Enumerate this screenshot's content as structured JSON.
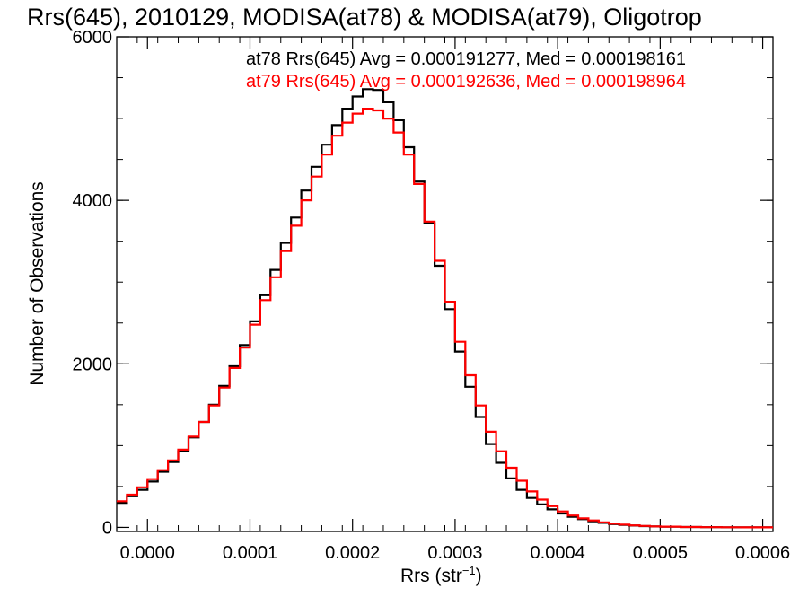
{
  "chart_data": {
    "type": "line",
    "title": "Rrs(645), 2010129, MODISA(at78) & MODISA(at79), Oligotrop",
    "xlabel_main": "Rrs (str",
    "xlabel_sup": "−1",
    "xlabel_close": ")",
    "ylabel": "Number of Observations",
    "xlim": [
      -3e-05,
      0.00061
    ],
    "ylim": [
      -50,
      6000
    ],
    "x_ticks": [
      0.0,
      0.0001,
      0.0002,
      0.0003,
      0.0004,
      0.0005,
      0.0006
    ],
    "x_tick_labels": [
      "0.0000",
      "0.0001",
      "0.0002",
      "0.0003",
      "0.0004",
      "0.0005",
      "0.0006"
    ],
    "y_ticks": [
      0,
      2000,
      4000,
      6000
    ],
    "y_tick_labels": [
      "0",
      "2000",
      "4000",
      "6000"
    ],
    "grid": false,
    "legend_position": "top-right",
    "series": [
      {
        "name": "at78",
        "legend_text": "at78 Rrs(645) Avg = 0.000191277, Med = 0.000198161",
        "color": "#000000",
        "x": [
          -3e-05,
          -2e-05,
          -1e-05,
          0.0,
          1e-05,
          2e-05,
          3e-05,
          4e-05,
          5e-05,
          6e-05,
          7e-05,
          8e-05,
          9e-05,
          0.0001,
          0.00011,
          0.00012,
          0.00013,
          0.00014,
          0.00015,
          0.00016,
          0.00017,
          0.00018,
          0.00019,
          0.0002,
          0.00021,
          0.00022,
          0.00023,
          0.00024,
          0.00025,
          0.00026,
          0.00027,
          0.00028,
          0.00029,
          0.0003,
          0.00031,
          0.00032,
          0.00033,
          0.00034,
          0.00035,
          0.00036,
          0.00037,
          0.00038,
          0.00039,
          0.0004,
          0.00041,
          0.00042,
          0.00043,
          0.00044,
          0.00045,
          0.00046,
          0.00047,
          0.00048,
          0.00049,
          0.0005,
          0.00052,
          0.00054,
          0.00056,
          0.00058,
          0.0006
        ],
        "y": [
          300,
          380,
          460,
          560,
          680,
          800,
          930,
          1100,
          1290,
          1500,
          1730,
          1970,
          2230,
          2520,
          2840,
          3150,
          3480,
          3790,
          4120,
          4410,
          4680,
          4920,
          5120,
          5270,
          5360,
          5350,
          5200,
          4980,
          4650,
          4230,
          3720,
          3200,
          2670,
          2150,
          1720,
          1350,
          1020,
          790,
          600,
          460,
          360,
          280,
          220,
          170,
          130,
          100,
          75,
          55,
          40,
          30,
          22,
          16,
          12,
          9,
          5,
          3,
          2,
          1,
          0
        ]
      },
      {
        "name": "at79",
        "legend_text": "at79 Rrs(645) Avg = 0.000192636, Med = 0.000198964",
        "color": "#ff0000",
        "x": [
          -3e-05,
          -2e-05,
          -1e-05,
          0.0,
          1e-05,
          2e-05,
          3e-05,
          4e-05,
          5e-05,
          6e-05,
          7e-05,
          8e-05,
          9e-05,
          0.0001,
          0.00011,
          0.00012,
          0.00013,
          0.00014,
          0.00015,
          0.00016,
          0.00017,
          0.00018,
          0.00019,
          0.0002,
          0.00021,
          0.00022,
          0.00023,
          0.00024,
          0.00025,
          0.00026,
          0.00027,
          0.00028,
          0.00029,
          0.0003,
          0.00031,
          0.00032,
          0.00033,
          0.00034,
          0.00035,
          0.00036,
          0.00037,
          0.00038,
          0.00039,
          0.0004,
          0.00041,
          0.00042,
          0.00043,
          0.00044,
          0.00045,
          0.00046,
          0.00047,
          0.00048,
          0.00049,
          0.0005,
          0.00052,
          0.00054,
          0.00056,
          0.00058,
          0.0006
        ],
        "y": [
          320,
          400,
          490,
          590,
          700,
          820,
          950,
          1110,
          1290,
          1490,
          1710,
          1950,
          2200,
          2480,
          2780,
          3060,
          3380,
          3690,
          4000,
          4290,
          4560,
          4790,
          4950,
          5060,
          5120,
          5100,
          5000,
          4830,
          4560,
          4200,
          3740,
          3260,
          2760,
          2270,
          1860,
          1490,
          1170,
          930,
          730,
          570,
          440,
          340,
          260,
          195,
          145,
          110,
          85,
          62,
          46,
          34,
          25,
          18,
          13,
          9,
          5,
          3,
          2,
          1,
          0
        ]
      }
    ]
  }
}
